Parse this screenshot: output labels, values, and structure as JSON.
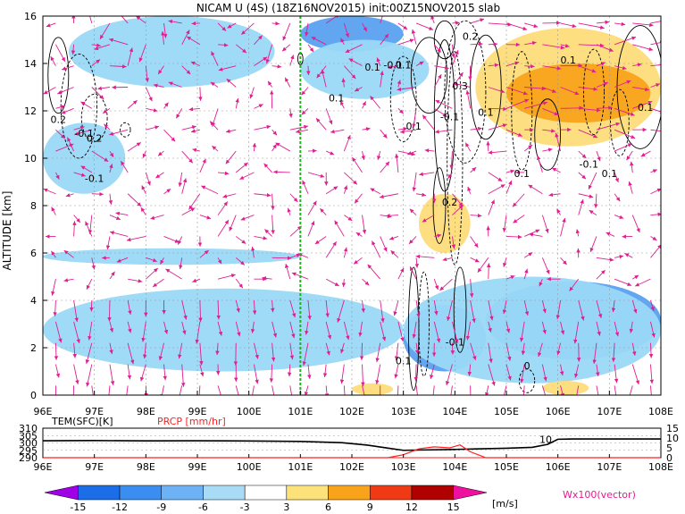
{
  "chart_data": [
    {
      "type": "heatmap",
      "title": "NICAM U (4S) (18Z16NOV2015) init:00Z15NOV2015 slab",
      "ylabel": "ALTITUDE [km]",
      "xlim": [
        96,
        108
      ],
      "ylim": [
        0,
        16
      ],
      "x_ticks": [
        "96E",
        "97E",
        "98E",
        "99E",
        "100E",
        "101E",
        "102E",
        "103E",
        "104E",
        "105E",
        "106E",
        "107E",
        "108E"
      ],
      "y_ticks": [
        "0",
        "2",
        "4",
        "6",
        "8",
        "10",
        "12",
        "14",
        "16"
      ],
      "grid": true,
      "marker_line_lon": 101,
      "shaded_regions": [
        {
          "level": -6,
          "color": "#9ad8f5",
          "x0": 96.0,
          "x1": 97.6,
          "y0": 8.5,
          "y1": 11.5
        },
        {
          "level": -6,
          "color": "#9ad8f5",
          "x0": 96.5,
          "x1": 100.5,
          "y0": 13.0,
          "y1": 16.0
        },
        {
          "level": -9,
          "color": "#5aa0f0",
          "x0": 101.0,
          "x1": 103.0,
          "y0": 14.5,
          "y1": 16.0
        },
        {
          "level": -6,
          "color": "#9ad8f5",
          "x0": 101.0,
          "x1": 103.5,
          "y0": 12.5,
          "y1": 15.0
        },
        {
          "level": -6,
          "color": "#9ad8f5",
          "x0": 96.0,
          "x1": 103.0,
          "y0": 1.0,
          "y1": 4.5
        },
        {
          "level": -6,
          "color": "#9ad8f5",
          "x0": 96.0,
          "x1": 101.0,
          "y0": 5.5,
          "y1": 6.2
        },
        {
          "level": -9,
          "color": "#5aa0f0",
          "x0": 103.0,
          "x1": 104.6,
          "y0": 1.0,
          "y1": 3.8
        },
        {
          "level": -9,
          "color": "#5aa0f0",
          "x0": 104.6,
          "x1": 108.0,
          "y0": 1.5,
          "y1": 4.8
        },
        {
          "level": -6,
          "color": "#9ad8f5",
          "x0": 103.0,
          "x1": 108.0,
          "y0": 0.5,
          "y1": 5.0
        },
        {
          "level": 6,
          "color": "#fddc7a",
          "x0": 104.4,
          "x1": 108.0,
          "y0": 10.5,
          "y1": 15.5
        },
        {
          "level": 6,
          "color": "#fddc7a",
          "x0": 103.3,
          "x1": 104.3,
          "y0": 6.0,
          "y1": 8.5
        },
        {
          "level": 9,
          "color": "#f9a31a",
          "x0": 105.0,
          "x1": 107.8,
          "y0": 11.5,
          "y1": 14.0
        },
        {
          "level": 6,
          "color": "#fddc7a",
          "x0": 102.0,
          "x1": 102.8,
          "y0": 0.0,
          "y1": 0.5
        },
        {
          "level": 6,
          "color": "#fddc7a",
          "x0": 105.7,
          "x1": 106.6,
          "y0": 0.0,
          "y1": 0.6
        }
      ],
      "contour_labels": [
        {
          "text": "0.1",
          "x": 102.4,
          "y": 13.7
        },
        {
          "text": "0.2",
          "x": 104.3,
          "y": 15.0
        },
        {
          "text": "0.1",
          "x": 106.2,
          "y": 14.0
        },
        {
          "text": "0.1",
          "x": 101.7,
          "y": 12.4
        },
        {
          "text": "0.3",
          "x": 104.1,
          "y": 12.9
        },
        {
          "text": "0.1",
          "x": 103.2,
          "y": 11.2
        },
        {
          "text": "0.1",
          "x": 104.6,
          "y": 11.8
        },
        {
          "text": "-0.1",
          "x": 103.9,
          "y": 11.6
        },
        {
          "text": "0.1",
          "x": 107.7,
          "y": 12.0
        },
        {
          "text": "0.2",
          "x": 96.3,
          "y": 11.5
        },
        {
          "text": "-0.1",
          "x": 96.8,
          "y": 10.9
        },
        {
          "text": "0.2",
          "x": 97.0,
          "y": 10.7
        },
        {
          "text": "-0.1",
          "x": 97.0,
          "y": 9.0
        },
        {
          "text": "-0.1",
          "x": 106.6,
          "y": 9.6
        },
        {
          "text": "0.1",
          "x": 105.3,
          "y": 9.2
        },
        {
          "text": "0.1",
          "x": 107.0,
          "y": 9.2
        },
        {
          "text": "0.1",
          "x": 103.0,
          "y": 13.8
        },
        {
          "text": "0.2",
          "x": 103.9,
          "y": 8.0
        },
        {
          "text": "-0.1",
          "x": 104.0,
          "y": 2.1
        },
        {
          "text": "0.1",
          "x": 103.0,
          "y": 1.3
        },
        {
          "text": "-0.1",
          "x": 102.8,
          "y": 13.8
        },
        {
          "text": "0",
          "x": 105.4,
          "y": 1.1
        }
      ]
    },
    {
      "type": "line",
      "xlim": [
        96,
        108
      ],
      "x_ticks": [
        "96E",
        "97E",
        "98E",
        "99E",
        "100E",
        "101E",
        "102E",
        "103E",
        "104E",
        "105E",
        "106E",
        "107E",
        "108E"
      ],
      "left_axis": {
        "label": "TEM(SFC)[K]",
        "ticks": [
          "310",
          "305",
          "300",
          "295",
          "290"
        ],
        "lim": [
          290,
          310
        ]
      },
      "right_axis": {
        "label": "PRCP [mm/hr]",
        "ticks": [
          "15",
          "10",
          "5",
          "0"
        ],
        "lim": [
          0,
          15
        ]
      },
      "series": [
        {
          "name": "TEM(SFC)[K]",
          "color": "#000000",
          "x": [
            96.0,
            97.0,
            98.0,
            99.0,
            100.0,
            101.0,
            101.8,
            102.3,
            102.7,
            103.0,
            103.5,
            104.0,
            104.5,
            105.0,
            105.5,
            105.8,
            106.0,
            106.3,
            107.0,
            108.0
          ],
          "y": [
            301.5,
            301.6,
            301.4,
            301.5,
            301.3,
            301.0,
            300.2,
            298.5,
            296.5,
            295.0,
            295.3,
            295.6,
            296.0,
            296.4,
            297.0,
            299.0,
            302.5,
            302.7,
            302.7,
            302.7
          ]
        },
        {
          "name": "PRCP [mm/hr]",
          "color": "#ff2020",
          "x": [
            96.0,
            102.7,
            103.0,
            103.3,
            103.6,
            103.9,
            104.1,
            104.3,
            104.6,
            108.0
          ],
          "y": [
            0,
            0,
            1.5,
            4.5,
            5.5,
            5.0,
            6.5,
            3.0,
            0,
            0
          ]
        }
      ],
      "annotations": [
        {
          "text": "10",
          "x": 105.85,
          "y": 302.5
        }
      ]
    }
  ],
  "colorbar": {
    "unit": "[m/s]",
    "tick_labels": [
      "-15",
      "-12",
      "-9",
      "-6",
      "-3",
      "3",
      "6",
      "9",
      "12",
      "15"
    ],
    "colors": [
      "#9f00e6",
      "#1b6de8",
      "#3a8ef0",
      "#6db2f5",
      "#a8dcf6",
      "#ffffff",
      "#fde27a",
      "#f9a31a",
      "#ef3a14",
      "#b00000",
      "#f010a0"
    ]
  },
  "vector_legend": "Wx100(vector)",
  "colors": {
    "vector": "#e01e8f",
    "marker_line": "#20b020",
    "contour": "#000000"
  }
}
